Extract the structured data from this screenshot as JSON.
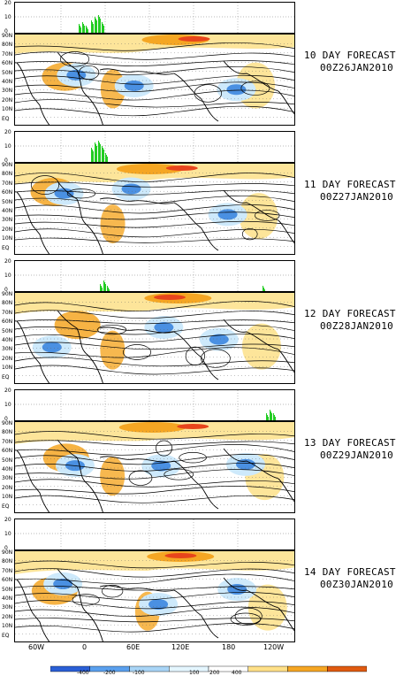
{
  "panels": [
    {
      "title": "10 DAY FORECAST",
      "date": "00Z26JAN2010"
    },
    {
      "title": "11 DAY FORECAST",
      "date": "00Z27JAN2010"
    },
    {
      "title": "12 DAY FORECAST",
      "date": "00Z28JAN2010"
    },
    {
      "title": "13 DAY FORECAST",
      "date": "00Z29JAN2010"
    },
    {
      "title": "14 DAY FORECAST",
      "date": "00Z30JAN2010"
    }
  ],
  "strip_yticks": [
    "20",
    "10",
    "0"
  ],
  "lat_labels": [
    "90N",
    "80N",
    "70N",
    "60N",
    "50N",
    "40N",
    "30N",
    "20N",
    "10N",
    "EQ"
  ],
  "lon_labels": [
    "60W",
    "0",
    "60E",
    "120E",
    "180",
    "120W"
  ],
  "colorbar": {
    "labels": [
      "-400",
      "-200",
      "-100",
      "100",
      "200",
      "400"
    ],
    "colors": [
      "#2a5fd6",
      "#5aa0ee",
      "#a8d4f6",
      "#e4f6ff",
      "#ffffff",
      "#ffe088",
      "#f5a623",
      "#e05a10"
    ]
  },
  "colors": {
    "positive_high": "#e8451c",
    "positive_mid": "#f5a623",
    "positive_low": "#fde59a",
    "negative_mid": "#4a90e2",
    "negative_low": "#cde9fb",
    "bars": "#22cc22"
  }
}
